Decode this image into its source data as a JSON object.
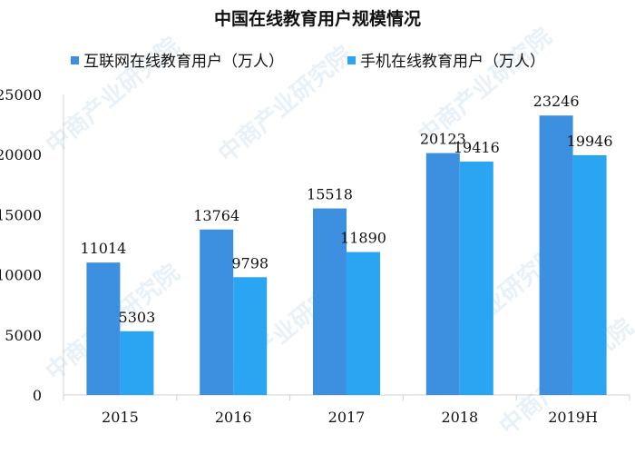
{
  "chart_data": {
    "type": "bar",
    "title": "中国在线教育用户规模情况",
    "categories": [
      "2015",
      "2016",
      "2017",
      "2018",
      "2019H"
    ],
    "series": [
      {
        "name": "互联网在线教育用户（万人）",
        "values": [
          11014,
          13764,
          15518,
          20123,
          23246
        ],
        "color": "#3d8fe0"
      },
      {
        "name": "手机在线教育用户（万人）",
        "values": [
          5303,
          9798,
          11890,
          19416,
          19946
        ],
        "color": "#2aa5f2"
      }
    ],
    "ylim": [
      0,
      25000
    ],
    "yticks": [
      0,
      5000,
      10000,
      15000,
      20000,
      25000
    ],
    "xlabel": "",
    "ylabel": "",
    "grid": false,
    "legend_position": "top"
  },
  "watermark": "中商产业研究院"
}
